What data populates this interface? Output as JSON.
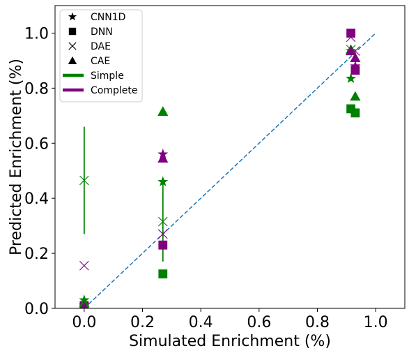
{
  "chart_data": {
    "type": "scatter",
    "xlabel": "Simulated Enrichment (%)",
    "ylabel": "Predicted Enrichment (%)",
    "xlim": [
      -0.1,
      1.1
    ],
    "ylim": [
      0.0,
      1.1
    ],
    "xticks": [
      0.0,
      0.2,
      0.4,
      0.6,
      0.8,
      1.0
    ],
    "yticks": [
      0.0,
      0.2,
      0.4,
      0.6,
      0.8,
      1.0
    ],
    "xtick_labels": [
      "0.0",
      "0.2",
      "0.4",
      "0.6",
      "0.8",
      "1.0"
    ],
    "ytick_labels": [
      "0.0",
      "0.2",
      "0.4",
      "0.6",
      "0.8",
      "1.0"
    ],
    "grid": false,
    "legend_position": "top-left",
    "colors": {
      "simple": "#008000",
      "complete": "#800080",
      "diagonal": "#1f77b4"
    },
    "reference_line": {
      "style": "dashed",
      "from": [
        0.0,
        0.0
      ],
      "to": [
        1.0,
        1.0
      ]
    },
    "legend": {
      "markers": [
        {
          "label": "CNN1D",
          "marker": "star"
        },
        {
          "label": "DNN",
          "marker": "square"
        },
        {
          "label": "DAE",
          "marker": "x"
        },
        {
          "label": "CAE",
          "marker": "triangle"
        }
      ],
      "lines": [
        {
          "label": "Simple",
          "color": "#008000"
        },
        {
          "label": "Complete",
          "color": "#800080"
        }
      ]
    },
    "series": [
      {
        "model": "CNN1D",
        "dataset": "Simple",
        "marker": "star",
        "color": "#008000",
        "points": [
          [
            0.0,
            0.03
          ],
          [
            0.27,
            0.46
          ],
          [
            0.915,
            0.835
          ],
          [
            0.915,
            0.935
          ]
        ]
      },
      {
        "model": "CNN1D",
        "dataset": "Complete",
        "marker": "star",
        "color": "#800080",
        "points": [
          [
            0.0,
            0.01
          ],
          [
            0.27,
            0.56
          ],
          [
            0.93,
            0.88
          ]
        ]
      },
      {
        "model": "DNN",
        "dataset": "Simple",
        "marker": "square",
        "color": "#008000",
        "points": [
          [
            0.0,
            0.005
          ],
          [
            0.27,
            0.125
          ],
          [
            0.915,
            0.725
          ],
          [
            0.93,
            0.71
          ]
        ]
      },
      {
        "model": "DNN",
        "dataset": "Complete",
        "marker": "square",
        "color": "#800080",
        "points": [
          [
            0.0,
            0.01
          ],
          [
            0.27,
            0.23
          ],
          [
            0.915,
            1.0
          ],
          [
            0.93,
            0.865
          ]
        ]
      },
      {
        "model": "DAE",
        "dataset": "Simple",
        "marker": "x",
        "color": "#008000",
        "points": [
          [
            0.0,
            0.465
          ],
          [
            0.27,
            0.315
          ],
          [
            0.915,
            0.94
          ]
        ]
      },
      {
        "model": "DAE",
        "dataset": "Complete",
        "marker": "x",
        "color": "#800080",
        "points": [
          [
            0.0,
            0.155
          ],
          [
            0.27,
            0.27
          ],
          [
            0.915,
            0.985
          ],
          [
            0.93,
            0.935
          ]
        ]
      },
      {
        "model": "CAE",
        "dataset": "Simple",
        "marker": "triangle",
        "color": "#008000",
        "points": [
          [
            0.0,
            0.02
          ],
          [
            0.27,
            0.715
          ],
          [
            0.915,
            0.94
          ],
          [
            0.93,
            0.77
          ]
        ]
      },
      {
        "model": "CAE",
        "dataset": "Complete",
        "marker": "triangle",
        "color": "#800080",
        "points": [
          [
            0.0,
            0.005
          ],
          [
            0.27,
            0.545
          ],
          [
            0.915,
            0.935
          ],
          [
            0.93,
            0.91
          ]
        ]
      }
    ],
    "error_bars": [
      {
        "dataset": "Simple",
        "color": "#008000",
        "x": 0.0,
        "y_low": 0.27,
        "y_high": 0.66
      },
      {
        "dataset": "Simple",
        "color": "#008000",
        "x": 0.27,
        "y_low": 0.17,
        "y_high": 0.46
      }
    ]
  }
}
